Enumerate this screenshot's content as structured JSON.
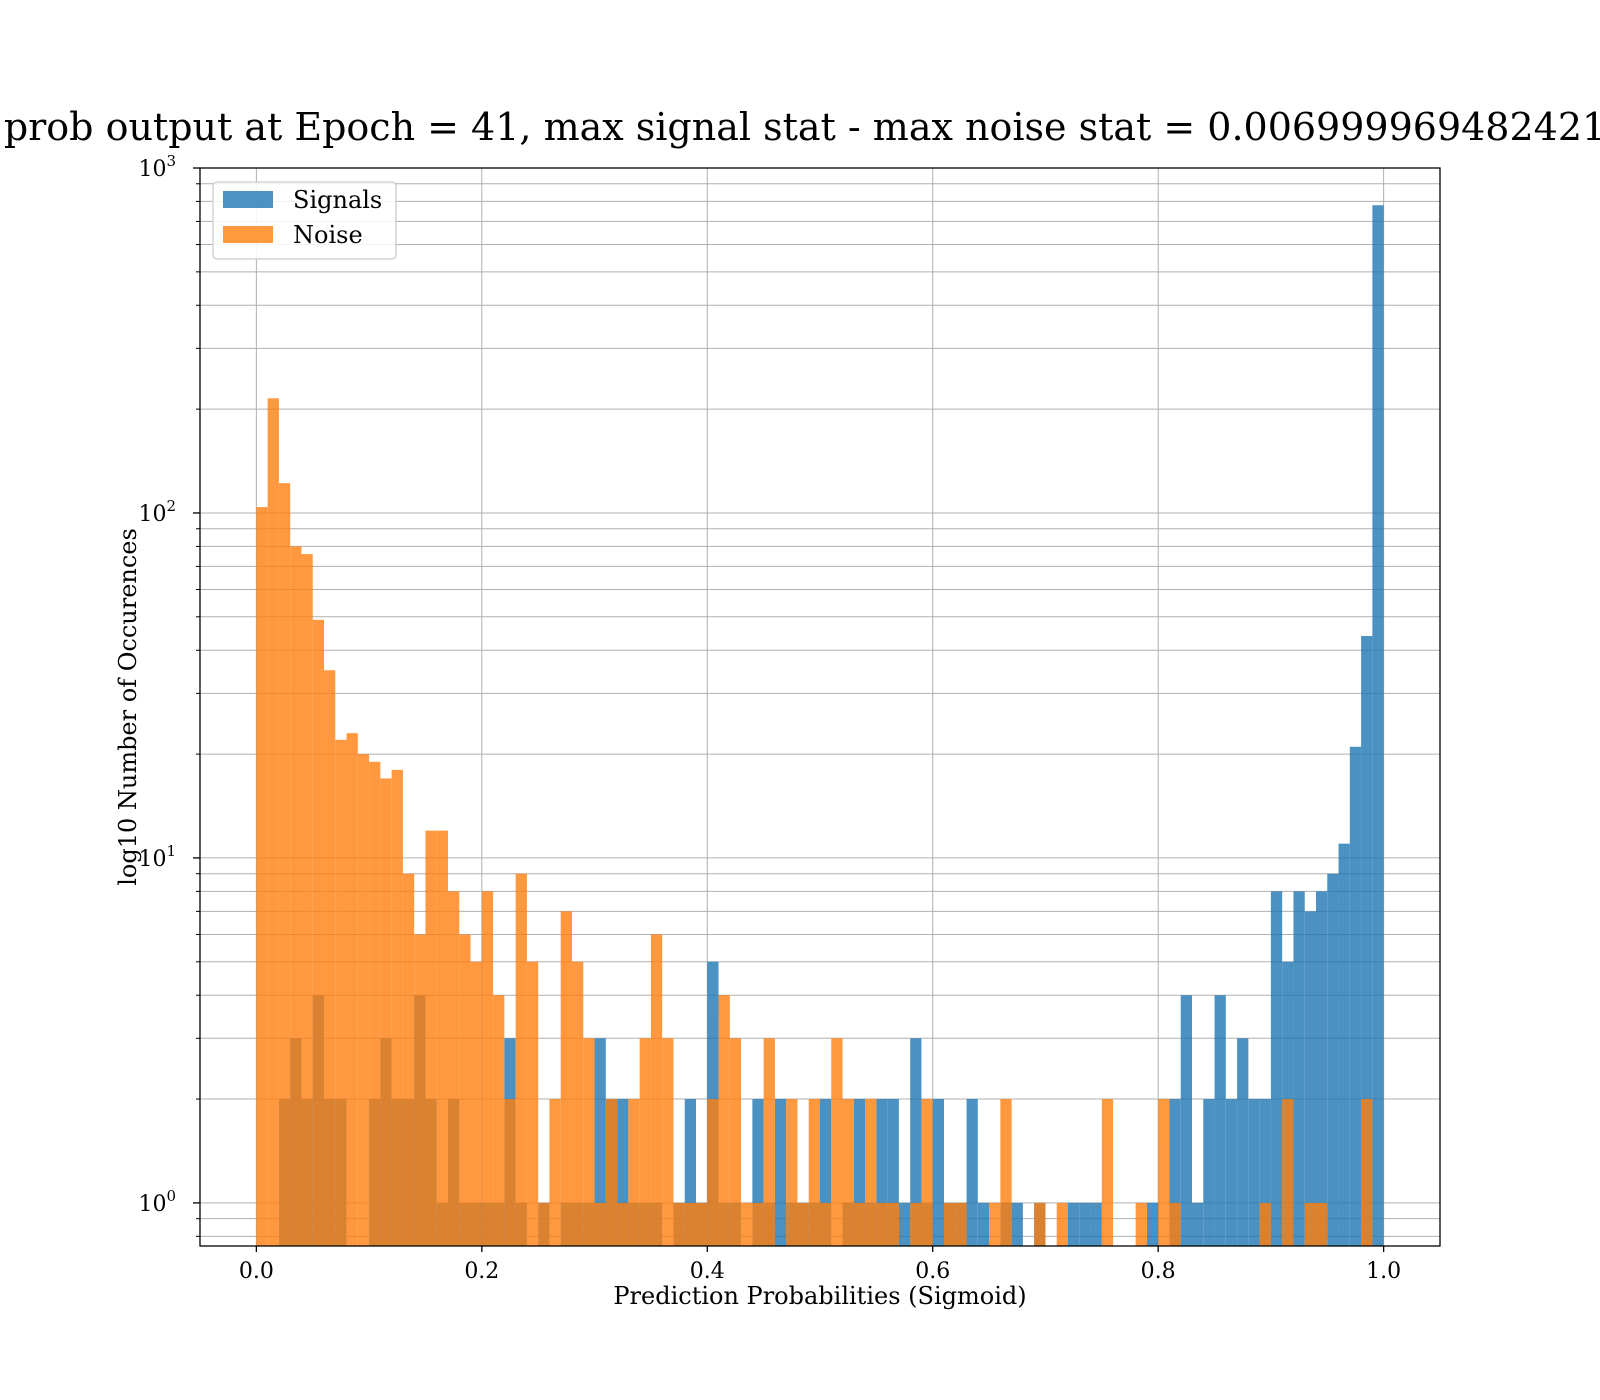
{
  "chart_data": {
    "type": "bar",
    "title": "prob output at Epoch = 41, max signal stat - max noise stat = 0.006999969482421",
    "xlabel": "Prediction Probabilities (Sigmoid)",
    "ylabel": "log10 Number of Occurences",
    "xlim": [
      -0.05,
      1.05
    ],
    "ylim": [
      0.75,
      1000
    ],
    "yscale": "log",
    "grid": true,
    "legend_position": "top-left",
    "bin_width": 0.01,
    "x_ticks": [
      "0.0",
      "0.2",
      "0.4",
      "0.6",
      "0.8",
      "1.0"
    ],
    "y_ticks": [
      {
        "base": "10",
        "exp": "0",
        "value": 1
      },
      {
        "base": "10",
        "exp": "1",
        "value": 10
      },
      {
        "base": "10",
        "exp": "2",
        "value": 100
      },
      {
        "base": "10",
        "exp": "3",
        "value": 1000
      }
    ],
    "series": [
      {
        "name": "Signals",
        "color": "#1f77b4",
        "bins": [
          [
            0.02,
            2
          ],
          [
            0.03,
            3
          ],
          [
            0.04,
            2
          ],
          [
            0.05,
            4
          ],
          [
            0.06,
            2
          ],
          [
            0.07,
            2
          ],
          [
            0.1,
            2
          ],
          [
            0.11,
            3
          ],
          [
            0.12,
            2
          ],
          [
            0.13,
            2
          ],
          [
            0.14,
            4
          ],
          [
            0.15,
            2
          ],
          [
            0.16,
            1
          ],
          [
            0.17,
            2
          ],
          [
            0.18,
            1
          ],
          [
            0.19,
            1
          ],
          [
            0.2,
            1
          ],
          [
            0.21,
            1
          ],
          [
            0.22,
            3
          ],
          [
            0.23,
            1
          ],
          [
            0.25,
            1
          ],
          [
            0.27,
            1
          ],
          [
            0.28,
            1
          ],
          [
            0.29,
            1
          ],
          [
            0.3,
            3
          ],
          [
            0.31,
            2
          ],
          [
            0.32,
            2
          ],
          [
            0.33,
            1
          ],
          [
            0.34,
            1
          ],
          [
            0.35,
            1
          ],
          [
            0.37,
            1
          ],
          [
            0.38,
            2
          ],
          [
            0.39,
            1
          ],
          [
            0.4,
            5
          ],
          [
            0.41,
            1
          ],
          [
            0.42,
            1
          ],
          [
            0.44,
            2
          ],
          [
            0.45,
            1
          ],
          [
            0.46,
            2
          ],
          [
            0.47,
            1
          ],
          [
            0.48,
            1
          ],
          [
            0.49,
            1
          ],
          [
            0.5,
            2
          ],
          [
            0.52,
            1
          ],
          [
            0.53,
            2
          ],
          [
            0.54,
            1
          ],
          [
            0.55,
            2
          ],
          [
            0.56,
            2
          ],
          [
            0.57,
            1
          ],
          [
            0.58,
            3
          ],
          [
            0.59,
            1
          ],
          [
            0.6,
            2
          ],
          [
            0.61,
            1
          ],
          [
            0.62,
            1
          ],
          [
            0.63,
            2
          ],
          [
            0.64,
            1
          ],
          [
            0.66,
            1
          ],
          [
            0.67,
            1
          ],
          [
            0.69,
            1
          ],
          [
            0.72,
            1
          ],
          [
            0.73,
            1
          ],
          [
            0.74,
            1
          ],
          [
            0.79,
            1
          ],
          [
            0.81,
            2
          ],
          [
            0.82,
            4
          ],
          [
            0.83,
            1
          ],
          [
            0.84,
            2
          ],
          [
            0.85,
            4
          ],
          [
            0.86,
            2
          ],
          [
            0.87,
            3
          ],
          [
            0.88,
            2
          ],
          [
            0.89,
            2
          ],
          [
            0.9,
            8
          ],
          [
            0.91,
            5
          ],
          [
            0.92,
            8
          ],
          [
            0.93,
            7
          ],
          [
            0.94,
            8
          ],
          [
            0.95,
            9
          ],
          [
            0.96,
            11
          ],
          [
            0.97,
            21
          ],
          [
            0.98,
            44
          ],
          [
            0.99,
            780
          ]
        ]
      },
      {
        "name": "Noise",
        "color": "#ff7f0e",
        "bins": [
          [
            0.0,
            104
          ],
          [
            0.01,
            215
          ],
          [
            0.02,
            122
          ],
          [
            0.03,
            80
          ],
          [
            0.04,
            76
          ],
          [
            0.05,
            49
          ],
          [
            0.06,
            35
          ],
          [
            0.07,
            22
          ],
          [
            0.08,
            23
          ],
          [
            0.09,
            20
          ],
          [
            0.1,
            19
          ],
          [
            0.11,
            17
          ],
          [
            0.12,
            18
          ],
          [
            0.13,
            9
          ],
          [
            0.14,
            6
          ],
          [
            0.15,
            12
          ],
          [
            0.16,
            12
          ],
          [
            0.17,
            8
          ],
          [
            0.18,
            6
          ],
          [
            0.19,
            5
          ],
          [
            0.2,
            8
          ],
          [
            0.21,
            4
          ],
          [
            0.22,
            2
          ],
          [
            0.23,
            9
          ],
          [
            0.24,
            5
          ],
          [
            0.25,
            1
          ],
          [
            0.26,
            2
          ],
          [
            0.27,
            7
          ],
          [
            0.28,
            5
          ],
          [
            0.29,
            3
          ],
          [
            0.3,
            1
          ],
          [
            0.31,
            2
          ],
          [
            0.32,
            1
          ],
          [
            0.33,
            2
          ],
          [
            0.34,
            3
          ],
          [
            0.35,
            6
          ],
          [
            0.36,
            3
          ],
          [
            0.37,
            1
          ],
          [
            0.38,
            1
          ],
          [
            0.39,
            1
          ],
          [
            0.4,
            2
          ],
          [
            0.41,
            4
          ],
          [
            0.42,
            3
          ],
          [
            0.43,
            1
          ],
          [
            0.44,
            1
          ],
          [
            0.45,
            3
          ],
          [
            0.47,
            2
          ],
          [
            0.48,
            1
          ],
          [
            0.49,
            2
          ],
          [
            0.5,
            1
          ],
          [
            0.51,
            3
          ],
          [
            0.52,
            2
          ],
          [
            0.53,
            1
          ],
          [
            0.54,
            2
          ],
          [
            0.55,
            1
          ],
          [
            0.56,
            1
          ],
          [
            0.58,
            1
          ],
          [
            0.59,
            2
          ],
          [
            0.61,
            1
          ],
          [
            0.62,
            1
          ],
          [
            0.65,
            1
          ],
          [
            0.66,
            2
          ],
          [
            0.69,
            1
          ],
          [
            0.71,
            1
          ],
          [
            0.75,
            2
          ],
          [
            0.78,
            1
          ],
          [
            0.8,
            2
          ],
          [
            0.81,
            1
          ],
          [
            0.89,
            1
          ],
          [
            0.91,
            2
          ],
          [
            0.93,
            1
          ],
          [
            0.94,
            1
          ],
          [
            0.98,
            2
          ]
        ]
      }
    ]
  }
}
